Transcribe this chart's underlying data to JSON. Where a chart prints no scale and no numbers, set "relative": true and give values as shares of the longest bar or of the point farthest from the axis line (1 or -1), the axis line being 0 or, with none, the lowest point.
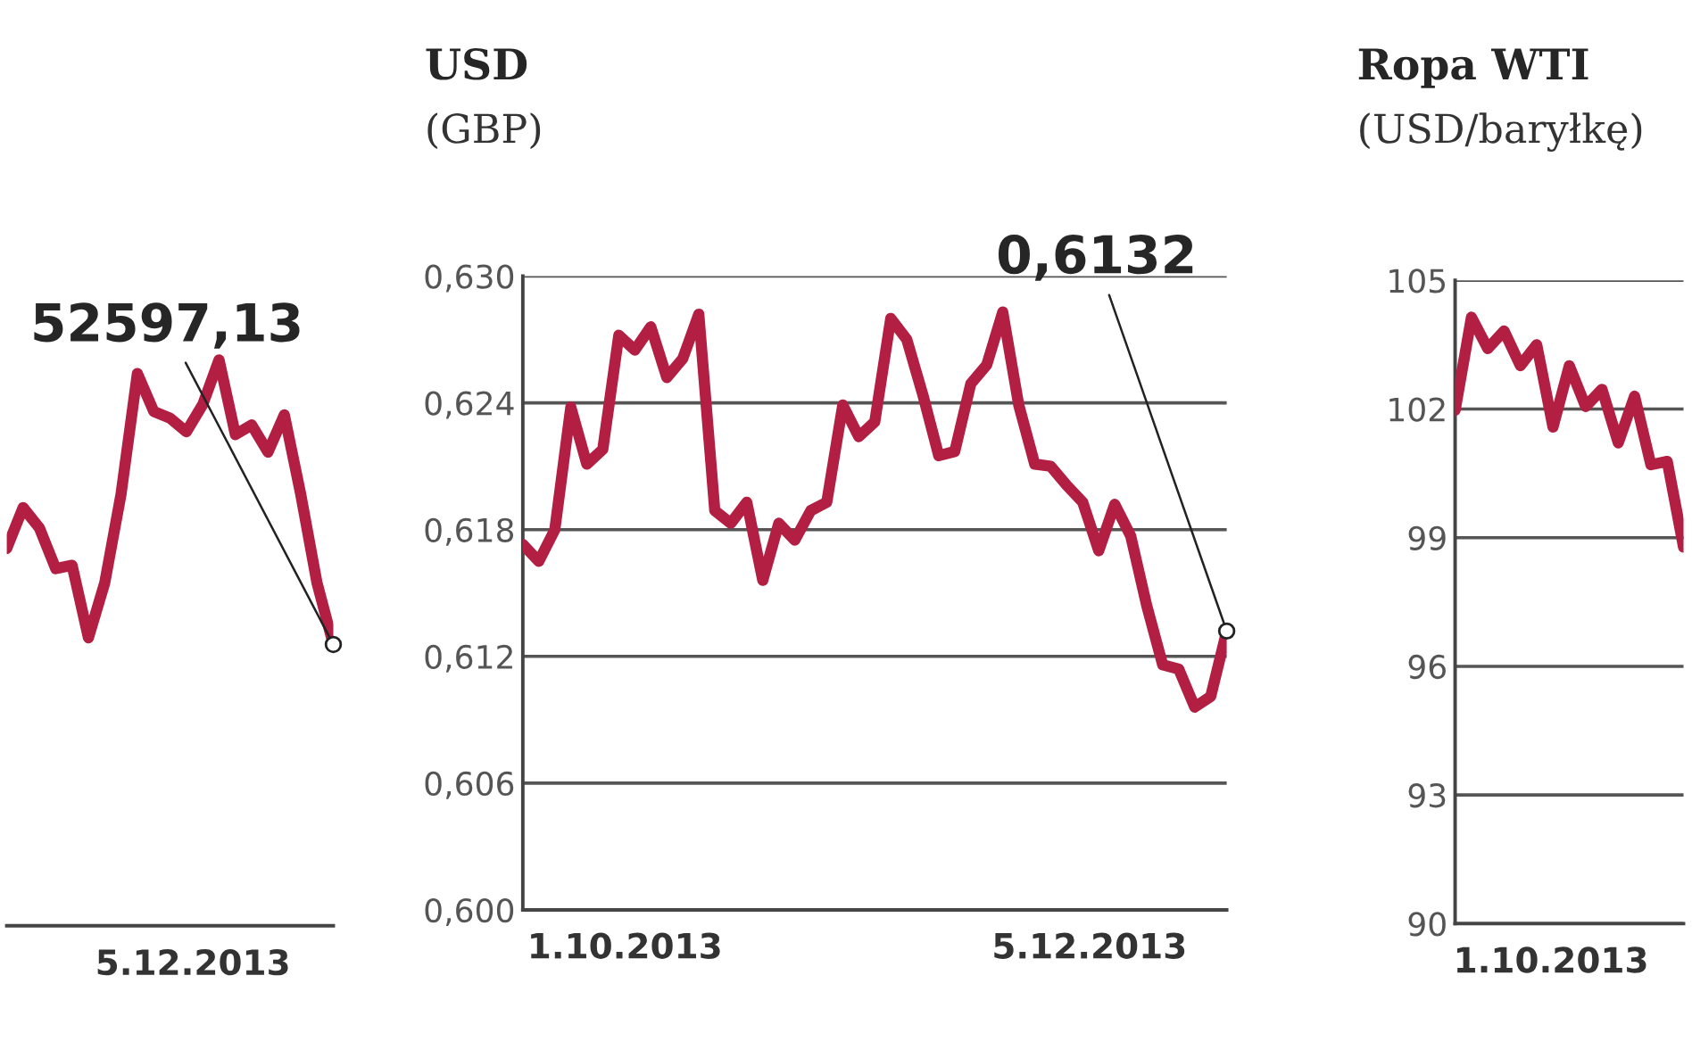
{
  "chart_data": [
    {
      "type": "line",
      "relative": true,
      "color": "#b31f42",
      "categories": [
        null,
        null,
        null,
        null,
        null,
        null,
        null,
        null,
        null,
        null,
        null,
        null,
        null,
        null,
        null,
        null,
        null,
        null,
        null,
        null,
        null
      ],
      "values": [
        0.667,
        0.739,
        0.703,
        0.631,
        0.637,
        0.509,
        0.606,
        0.763,
        0.976,
        0.909,
        0.897,
        0.873,
        0.921,
        1,
        0.868,
        0.885,
        0.837,
        0.903,
        0.763,
        0.606,
        0.497
      ],
      "annotations": [
        "52597,13",
        "5.12.2013"
      ]
    },
    {
      "type": "line",
      "title": "USD",
      "subtitle": "(GBP)",
      "grid": "y",
      "color": "#b31f42",
      "categories": [
        null,
        null,
        null,
        null,
        null,
        null,
        null,
        null,
        null,
        null,
        null,
        null,
        null,
        null,
        null,
        null,
        null,
        null,
        null,
        null,
        null,
        null,
        null,
        null,
        null,
        null,
        null,
        null,
        null,
        null,
        null,
        null,
        null,
        null,
        null,
        null,
        null,
        null,
        null,
        null,
        null,
        null,
        null,
        null,
        null
      ],
      "values": [
        0.6173,
        0.6165,
        0.618,
        0.6238,
        0.6211,
        0.6218,
        0.6272,
        0.6265,
        0.6276,
        0.6252,
        0.6261,
        0.6282,
        0.6189,
        0.6183,
        0.6193,
        0.6156,
        0.6183,
        0.6175,
        0.6189,
        0.6193,
        0.6239,
        0.6224,
        0.6231,
        0.628,
        0.627,
        0.6244,
        0.6215,
        0.6217,
        0.6249,
        0.6258,
        0.6283,
        0.6239,
        0.6211,
        0.621,
        0.6201,
        0.6193,
        0.617,
        0.6192,
        0.6177,
        0.6144,
        0.6116,
        0.6114,
        0.6096,
        0.6101,
        0.6132
      ],
      "ylim": [
        0.6,
        0.63
      ],
      "yticks": [
        {
          "value": 0.6,
          "label": "0,600"
        },
        {
          "value": 0.606,
          "label": "0,606"
        },
        {
          "value": 0.612,
          "label": "0,612"
        },
        {
          "value": 0.618,
          "label": "0,618"
        },
        {
          "value": 0.624,
          "label": "0,624"
        },
        {
          "value": 0.63,
          "label": "0,630"
        }
      ],
      "annotations": [
        "0,6132",
        "1.10.2013",
        "5.12.2013"
      ]
    },
    {
      "type": "line",
      "title": "Ropa WTI",
      "subtitle": "(USD/baryłkę)",
      "grid": "y",
      "color": "#b31f42",
      "categories": [
        null,
        null,
        null,
        null,
        null,
        null,
        null,
        null,
        null,
        null,
        null,
        null,
        null,
        null,
        null
      ],
      "values": [
        101.97,
        104.14,
        103.41,
        103.82,
        103.01,
        103.5,
        101.58,
        103.01,
        102.06,
        102.46,
        101.21,
        102.3,
        100.7,
        100.78,
        98.78
      ],
      "ylim": [
        90,
        105
      ],
      "yticks": [
        90,
        93,
        96,
        99,
        102,
        105
      ],
      "annotations": [
        "1.10.2013"
      ]
    }
  ]
}
